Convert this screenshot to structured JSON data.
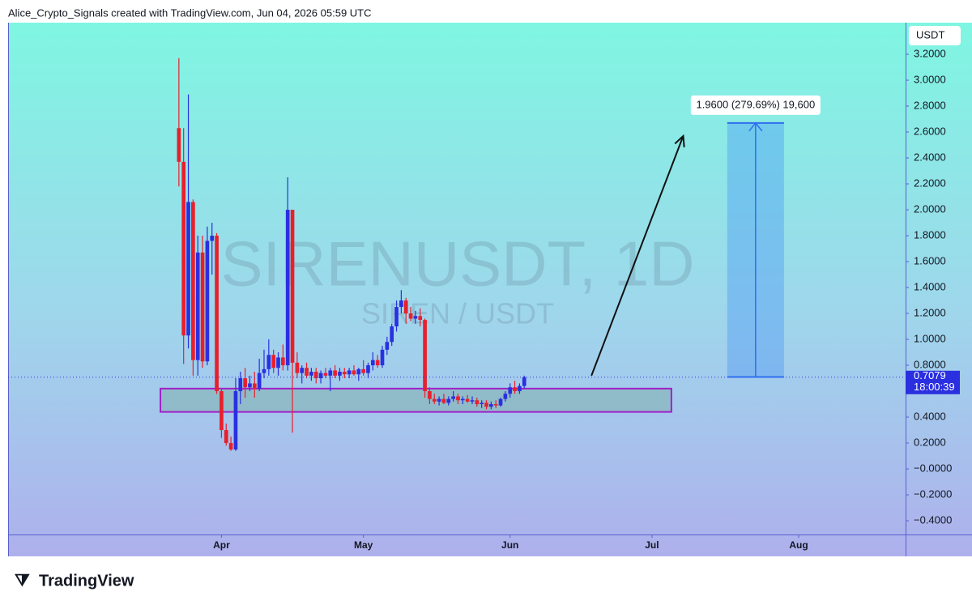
{
  "header": "Alice_Crypto_Signals created with TradingView.com, Jun 04, 2026 05:59 UTC",
  "brand": "TradingView",
  "chart_data": {
    "type": "candlestick",
    "title": "SIRENUSDT, 1D",
    "subtitle": "SIREN / USDT",
    "currency": "USDT",
    "countdown": "18:00:39",
    "up_color": "#2a2fe0",
    "down_color": "#e8202c",
    "open": [
      2.63,
      2.37,
      1.03,
      2.06,
      0.84,
      1.67,
      0.83,
      1.76,
      1.8,
      0.6,
      0.3,
      0.2,
      0.15,
      0.6,
      0.7,
      0.63,
      0.66,
      0.62,
      0.74,
      0.77,
      0.88,
      0.78,
      0.86,
      0.8,
      2.0,
      0.82,
      0.74,
      0.78,
      0.72,
      0.75,
      0.7,
      0.74,
      0.72,
      0.76,
      0.72,
      0.75,
      0.73,
      0.76,
      0.73,
      0.77,
      0.74,
      0.8,
      0.84,
      0.8,
      0.92,
      0.98,
      1.1,
      1.25,
      1.3,
      1.2,
      1.16,
      1.18,
      1.15,
      0.6,
      0.54,
      0.52,
      0.54,
      0.51,
      0.54,
      0.56,
      0.53,
      0.54,
      0.52,
      0.53,
      0.5,
      0.51,
      0.48,
      0.5,
      0.49,
      0.54,
      0.58,
      0.63,
      0.6,
      0.64
    ],
    "high": [
      3.17,
      2.63,
      2.89,
      2.08,
      1.8,
      1.8,
      1.87,
      1.9,
      1.82,
      0.62,
      0.35,
      0.25,
      0.7,
      0.75,
      0.78,
      0.72,
      0.75,
      0.85,
      0.92,
      1.0,
      0.92,
      0.9,
      0.96,
      2.25,
      2.0,
      0.9,
      0.8,
      0.82,
      0.78,
      0.78,
      0.76,
      0.78,
      0.78,
      0.8,
      0.78,
      0.78,
      0.78,
      0.8,
      0.78,
      0.84,
      0.82,
      0.9,
      0.88,
      0.95,
      1.02,
      1.12,
      1.3,
      1.38,
      1.32,
      1.25,
      1.22,
      1.24,
      1.16,
      0.63,
      0.58,
      0.56,
      0.58,
      0.56,
      0.6,
      0.58,
      0.56,
      0.57,
      0.56,
      0.55,
      0.53,
      0.53,
      0.52,
      0.53,
      0.55,
      0.6,
      0.66,
      0.68,
      0.66,
      0.72
    ],
    "low": [
      2.18,
      0.81,
      0.93,
      0.72,
      0.72,
      0.78,
      0.8,
      1.5,
      0.58,
      0.24,
      0.18,
      0.14,
      0.14,
      0.5,
      0.55,
      0.6,
      0.55,
      0.6,
      0.7,
      0.72,
      0.74,
      0.72,
      0.76,
      0.76,
      0.28,
      0.7,
      0.66,
      0.7,
      0.68,
      0.66,
      0.66,
      0.7,
      0.6,
      0.7,
      0.68,
      0.7,
      0.7,
      0.72,
      0.68,
      0.72,
      0.7,
      0.76,
      0.78,
      0.78,
      0.88,
      0.95,
      1.06,
      1.2,
      1.12,
      1.14,
      1.12,
      1.1,
      0.55,
      0.5,
      0.5,
      0.49,
      0.5,
      0.49,
      0.52,
      0.5,
      0.5,
      0.51,
      0.5,
      0.48,
      0.47,
      0.46,
      0.46,
      0.47,
      0.48,
      0.52,
      0.55,
      0.58,
      0.58,
      0.62
    ],
    "close": [
      2.37,
      1.03,
      2.06,
      0.84,
      1.67,
      0.83,
      1.76,
      1.8,
      0.6,
      0.3,
      0.2,
      0.15,
      0.6,
      0.7,
      0.63,
      0.66,
      0.62,
      0.74,
      0.77,
      0.88,
      0.78,
      0.86,
      0.8,
      2.0,
      0.82,
      0.74,
      0.78,
      0.72,
      0.75,
      0.7,
      0.74,
      0.72,
      0.76,
      0.72,
      0.75,
      0.73,
      0.76,
      0.73,
      0.77,
      0.74,
      0.8,
      0.84,
      0.8,
      0.92,
      0.98,
      1.1,
      1.25,
      1.3,
      1.2,
      1.16,
      1.18,
      1.15,
      0.6,
      0.54,
      0.52,
      0.54,
      0.51,
      0.54,
      0.56,
      0.53,
      0.54,
      0.52,
      0.53,
      0.5,
      0.51,
      0.48,
      0.5,
      0.49,
      0.54,
      0.58,
      0.63,
      0.6,
      0.64,
      0.7079
    ],
    "xlim": [
      -36.1,
      153.6
    ],
    "xticks": [
      {
        "value": 9,
        "label": "Apr"
      },
      {
        "value": 39,
        "label": "May"
      },
      {
        "value": 70,
        "label": "Jun"
      },
      {
        "value": 100,
        "label": "Jul"
      },
      {
        "value": 131,
        "label": "Aug"
      }
    ],
    "ylim": [
      -0.506,
      3.444
    ],
    "yticks": [
      {
        "value": 3.2,
        "label": "3.2000"
      },
      {
        "value": 3.0,
        "label": "3.0000"
      },
      {
        "value": 2.8,
        "label": "2.8000"
      },
      {
        "value": 2.6,
        "label": "2.6000"
      },
      {
        "value": 2.4,
        "label": "2.4000"
      },
      {
        "value": 2.2,
        "label": "2.2000"
      },
      {
        "value": 2.0,
        "label": "2.0000"
      },
      {
        "value": 1.8,
        "label": "1.8000"
      },
      {
        "value": 1.6,
        "label": "1.6000"
      },
      {
        "value": 1.4,
        "label": "1.4000"
      },
      {
        "value": 1.2,
        "label": "1.2000"
      },
      {
        "value": 1.0,
        "label": "1.0000"
      },
      {
        "value": 0.8,
        "label": "0.8000"
      },
      {
        "value": 0.4,
        "label": "0.4000"
      },
      {
        "value": 0.2,
        "label": "0.2000"
      },
      {
        "value": 0,
        "label": "−0.0000"
      },
      {
        "value": -0.2,
        "label": "−0.2000"
      },
      {
        "value": -0.4,
        "label": "−0.4000"
      }
    ],
    "zone": {
      "x": [
        -3.9,
        104.1
      ],
      "y": [
        0.44,
        0.62
      ],
      "color": "#a020c8"
    },
    "projection": {
      "x": [
        115.9,
        127.9
      ],
      "y": [
        0.71,
        2.67
      ],
      "label": "1.9600 (279.69%) 19,600",
      "color": "#2f6df0"
    },
    "arrow": {
      "x": [
        87.2,
        106.6
      ],
      "y": [
        0.72,
        2.57
      ]
    }
  }
}
